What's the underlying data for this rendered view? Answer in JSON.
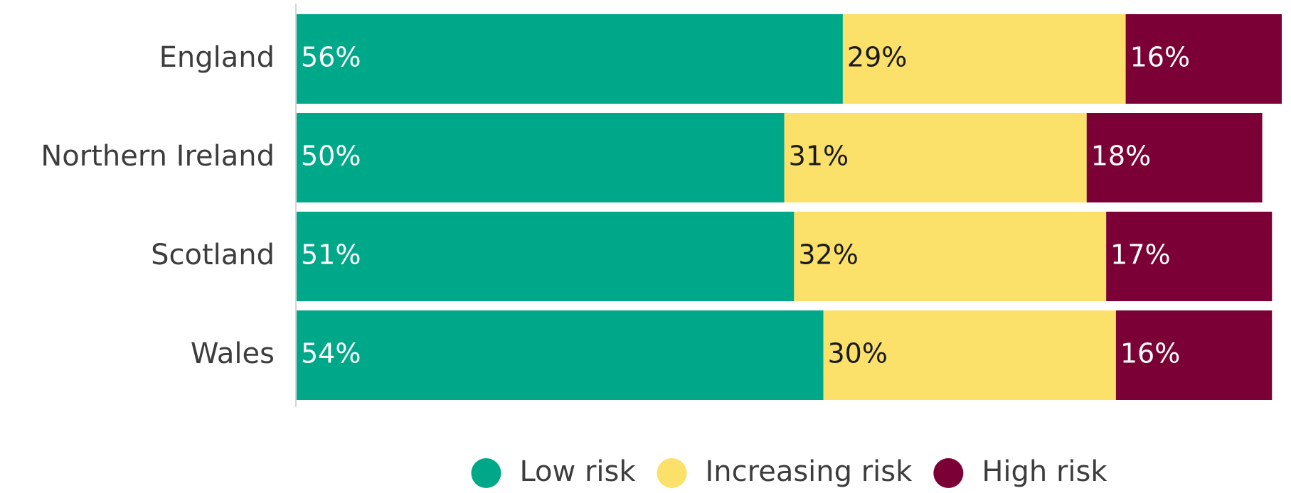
{
  "chart_data": {
    "type": "bar",
    "orientation": "horizontal",
    "stacked": true,
    "categories": [
      "England",
      "Northern Ireland",
      "Scotland",
      "Wales"
    ],
    "series": [
      {
        "name": "Low risk",
        "color": "#00a88a",
        "label_color": "#ffffff",
        "values": [
          56,
          50,
          51,
          54
        ],
        "labels": [
          "56%",
          "50%",
          "51%",
          "54%"
        ]
      },
      {
        "name": "Increasing risk",
        "color": "#fbe06a",
        "label_color": "#1a1a1a",
        "values": [
          29,
          31,
          32,
          30
        ],
        "labels": [
          "29%",
          "31%",
          "32%",
          "30%"
        ]
      },
      {
        "name": "High risk",
        "color": "#7a0036",
        "label_color": "#ffffff",
        "values": [
          16,
          18,
          17,
          16
        ],
        "labels": [
          "16%",
          "18%",
          "17%",
          "16%"
        ]
      }
    ],
    "xlim": [
      0,
      101
    ],
    "legend_position": "bottom",
    "grid": false,
    "title": "",
    "xlabel": "",
    "ylabel": ""
  }
}
